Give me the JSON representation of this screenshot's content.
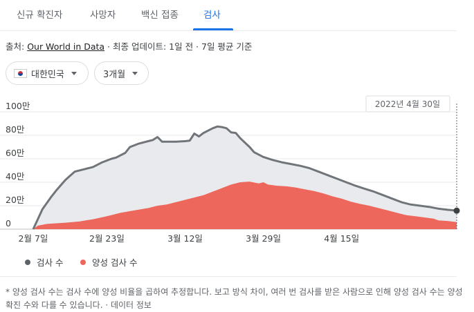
{
  "tabs": [
    {
      "label": "신규 확진자"
    },
    {
      "label": "사망자"
    },
    {
      "label": "백신 접종"
    },
    {
      "label": "검사"
    }
  ],
  "source": {
    "prefix": "출처: ",
    "link": "Our World in Data",
    "suffix": " · 최종 업데이트: 1일 전 · 7일 평균 기준"
  },
  "filters": {
    "country": "대한민국",
    "period": "3개월"
  },
  "tooltip": "2022년 4월 30일",
  "legend": {
    "tests": "검사 수",
    "positive": "양성 검사 수"
  },
  "footnote": "* 양성 검사 수는 검사 수에 양성 비율을 곱하여 추정합니다. 보고 방식 차이, 여러 번 검사를 받은 사람으로 인해 양성 검사 수는 양성 확진 수와 다를 수 있습니다. · 데이터 정보",
  "colors": {
    "tests_line": "#70757a",
    "tests_fill": "#e8eaed",
    "positive_fill": "#ee675c",
    "accent": "#1a73e8"
  },
  "chart_data": {
    "type": "area",
    "yticks": [
      "0",
      "20만",
      "40만",
      "60만",
      "80만",
      "100만"
    ],
    "ylim": [
      0,
      1000000
    ],
    "xticks": [
      {
        "label": "2월 7일",
        "day": 0
      },
      {
        "label": "2월 23일",
        "day": 16
      },
      {
        "label": "3월 12일",
        "day": 33
      },
      {
        "label": "3월 29일",
        "day": 50
      },
      {
        "label": "4월 15일",
        "day": 67
      }
    ],
    "series": [
      {
        "name": "검사 수",
        "points": [
          [
            0,
            0
          ],
          [
            2,
            170000
          ],
          [
            4,
            280000
          ],
          [
            5,
            330000
          ],
          [
            7,
            420000
          ],
          [
            9,
            490000
          ],
          [
            11,
            510000
          ],
          [
            13,
            530000
          ],
          [
            15,
            570000
          ],
          [
            17,
            600000
          ],
          [
            18,
            610000
          ],
          [
            20,
            650000
          ],
          [
            21,
            700000
          ],
          [
            23,
            730000
          ],
          [
            25,
            750000
          ],
          [
            26,
            760000
          ],
          [
            27,
            785000
          ],
          [
            28,
            745000
          ],
          [
            29,
            745000
          ],
          [
            31,
            745000
          ],
          [
            33,
            750000
          ],
          [
            34,
            755000
          ],
          [
            35,
            815000
          ],
          [
            36,
            790000
          ],
          [
            37,
            820000
          ],
          [
            38,
            840000
          ],
          [
            39,
            860000
          ],
          [
            40,
            875000
          ],
          [
            41,
            870000
          ],
          [
            42,
            860000
          ],
          [
            43,
            825000
          ],
          [
            44,
            820000
          ],
          [
            45,
            775000
          ],
          [
            47,
            700000
          ],
          [
            48,
            655000
          ],
          [
            50,
            615000
          ],
          [
            52,
            590000
          ],
          [
            54,
            570000
          ],
          [
            56,
            555000
          ],
          [
            58,
            540000
          ],
          [
            60,
            520000
          ],
          [
            62,
            490000
          ],
          [
            64,
            460000
          ],
          [
            66,
            430000
          ],
          [
            68,
            400000
          ],
          [
            70,
            370000
          ],
          [
            72,
            345000
          ],
          [
            74,
            320000
          ],
          [
            76,
            290000
          ],
          [
            78,
            260000
          ],
          [
            80,
            230000
          ],
          [
            82,
            210000
          ],
          [
            84,
            200000
          ],
          [
            86,
            190000
          ],
          [
            88,
            175000
          ],
          [
            90,
            165000
          ],
          [
            92,
            158000
          ]
        ]
      },
      {
        "name": "양성 검사 수",
        "points": [
          [
            0,
            0
          ],
          [
            1,
            30000
          ],
          [
            3,
            45000
          ],
          [
            5,
            50000
          ],
          [
            7,
            55000
          ],
          [
            10,
            65000
          ],
          [
            13,
            85000
          ],
          [
            16,
            110000
          ],
          [
            19,
            140000
          ],
          [
            22,
            160000
          ],
          [
            25,
            180000
          ],
          [
            27,
            200000
          ],
          [
            29,
            210000
          ],
          [
            31,
            230000
          ],
          [
            33,
            250000
          ],
          [
            35,
            270000
          ],
          [
            37,
            290000
          ],
          [
            39,
            320000
          ],
          [
            41,
            350000
          ],
          [
            43,
            380000
          ],
          [
            45,
            400000
          ],
          [
            47,
            405000
          ],
          [
            49,
            390000
          ],
          [
            50,
            400000
          ],
          [
            51,
            380000
          ],
          [
            53,
            370000
          ],
          [
            55,
            365000
          ],
          [
            57,
            355000
          ],
          [
            59,
            340000
          ],
          [
            61,
            325000
          ],
          [
            63,
            305000
          ],
          [
            65,
            280000
          ],
          [
            67,
            260000
          ],
          [
            69,
            235000
          ],
          [
            71,
            215000
          ],
          [
            73,
            200000
          ],
          [
            75,
            180000
          ],
          [
            77,
            160000
          ],
          [
            79,
            140000
          ],
          [
            81,
            120000
          ],
          [
            83,
            110000
          ],
          [
            85,
            100000
          ],
          [
            87,
            90000
          ],
          [
            88,
            75000
          ],
          [
            90,
            70000
          ],
          [
            92,
            60000
          ]
        ]
      }
    ]
  }
}
